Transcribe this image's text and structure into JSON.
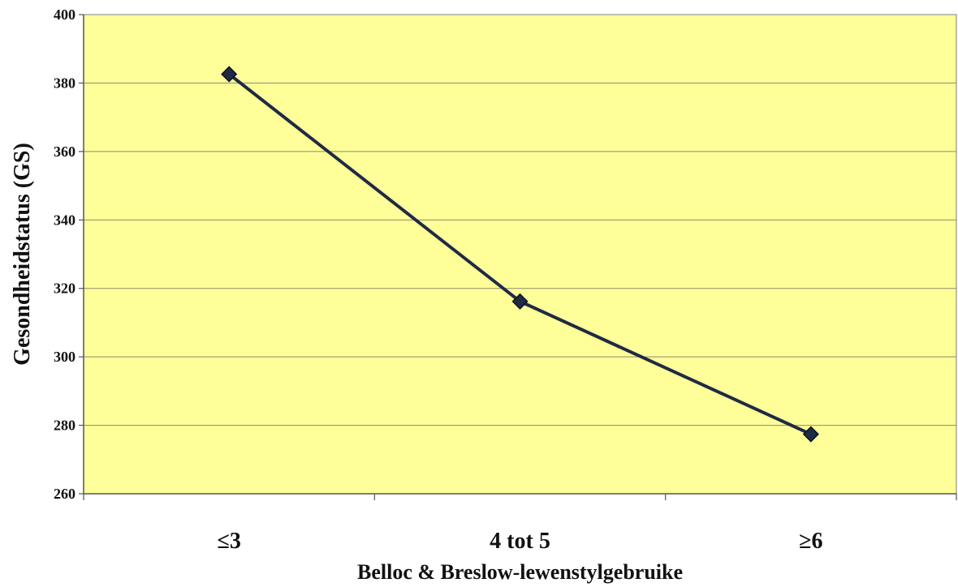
{
  "chart_data": {
    "type": "line",
    "title": "",
    "xlabel": "Belloc & Breslow-lewenstylgebruike",
    "ylabel": "Gesondheidstatus (GS)",
    "categories": [
      "≤3",
      "4 tot 5",
      "≥6"
    ],
    "series": [
      {
        "values": [
          382.6,
          316.2,
          277.4
        ],
        "color": "#1f2a44",
        "marker": "diamond"
      }
    ],
    "ylim": [
      260,
      400
    ],
    "yticks": [
      260,
      280,
      300,
      320,
      340,
      360,
      380,
      400
    ],
    "ytick_labels": [
      "260",
      "280",
      "300",
      "320",
      "340",
      "360",
      "380",
      "400"
    ],
    "grid": true,
    "legend": "none",
    "plot_background": "#ffff99",
    "line_color": "#1f2a44",
    "grid_color": "#8a8a70"
  }
}
